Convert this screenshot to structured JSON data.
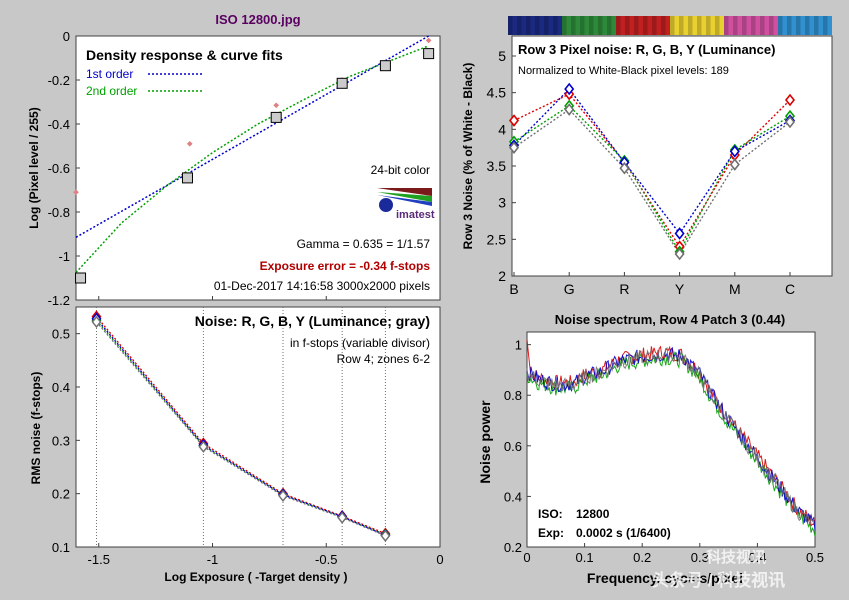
{
  "window": {
    "title": "ISO 12800.jpg"
  },
  "colors": {
    "background": "#c8c8c8",
    "plot_bg": "#ffffff",
    "red": "#dd0000",
    "green": "#00a000",
    "blue": "#0000cc",
    "gray": "#707070",
    "title_purple": "#5a0060",
    "exposure_error": "#b00000"
  },
  "color_strip": [
    "#1a2a80",
    "#2e8a3a",
    "#c02020",
    "#e8d030",
    "#d050a0",
    "#3090d0"
  ],
  "chart_data": [
    {
      "type": "scatter",
      "title": "Density response & curve fits",
      "xlabel": "Log Exposure ( -Target density )",
      "ylabel": "Log (Pixel level / 255)",
      "xlim": [
        -1.6,
        0
      ],
      "ylim": [
        -1.2,
        0
      ],
      "x_ticks": [
        "-1.5",
        "-1",
        "-0.5",
        "0"
      ],
      "y_ticks": [
        "0",
        "-0.2",
        "-0.4",
        "-0.6",
        "-0.8",
        "-1",
        "-1.2"
      ],
      "legend": [
        "1st order",
        "2nd order"
      ],
      "points": [
        {
          "x": -1.58,
          "y": -1.1
        },
        {
          "x": -1.11,
          "y": -0.645
        },
        {
          "x": -0.72,
          "y": -0.37
        },
        {
          "x": -0.43,
          "y": -0.215
        },
        {
          "x": -0.24,
          "y": -0.135
        },
        {
          "x": -0.05,
          "y": -0.08
        }
      ],
      "pink_points": [
        {
          "x": -1.6,
          "y": -0.71
        },
        {
          "x": -1.1,
          "y": -0.49
        },
        {
          "x": -0.72,
          "y": -0.315
        },
        {
          "x": -0.43,
          "y": -0.2
        },
        {
          "x": -0.24,
          "y": -0.12
        },
        {
          "x": -0.05,
          "y": -0.02
        }
      ],
      "fit_1st": {
        "x": [
          -1.6,
          -0.05
        ],
        "y": [
          -0.915,
          0.0
        ]
      },
      "fit_2nd": [
        [
          -1.6,
          -1.075
        ],
        [
          -1.4,
          -0.85
        ],
        [
          -1.2,
          -0.68
        ],
        [
          -1.0,
          -0.53
        ],
        [
          -0.8,
          -0.4
        ],
        [
          -0.6,
          -0.29
        ],
        [
          -0.4,
          -0.185
        ],
        [
          -0.2,
          -0.105
        ],
        [
          -0.05,
          -0.045
        ]
      ],
      "info": {
        "color_depth": "24-bit color",
        "logo": "imatest",
        "gamma": "Gamma = 0.635 = 1/1.57",
        "exposure_error": "Exposure error = -0.34 f-stops",
        "footer": "01-Dec-2017 14:16:58   3000x2000 pixels"
      }
    },
    {
      "type": "line",
      "title": "Row 3 Pixel noise: R, G, B, Y (Luminance)",
      "subtitle": "Normalized to White-Black pixel levels: 189",
      "ylabel": "Row 3 Noise (% of White - Black)",
      "categories": [
        "B",
        "G",
        "R",
        "Y",
        "M",
        "C"
      ],
      "ylim": [
        2,
        5
      ],
      "y_ticks": [
        "5",
        "4.5",
        "4",
        "3.5",
        "3",
        "2.5",
        "2"
      ],
      "series": [
        {
          "name": "R",
          "values": [
            4.12,
            4.48,
            3.55,
            2.4,
            3.65,
            4.4
          ]
        },
        {
          "name": "G",
          "values": [
            3.83,
            4.32,
            3.57,
            2.33,
            3.72,
            4.18
          ]
        },
        {
          "name": "B",
          "values": [
            3.78,
            4.55,
            3.55,
            2.58,
            3.7,
            4.12
          ]
        },
        {
          "name": "Y",
          "values": [
            3.75,
            4.27,
            3.47,
            2.3,
            3.52,
            4.1
          ]
        }
      ]
    },
    {
      "type": "line",
      "title": "Noise: R, G, B, Y (Luminance; gray)",
      "subtitle1": "in f-stops (variable divisor)",
      "subtitle2": "Row 4; zones 6-2",
      "xlabel": "Log Exposure ( -Target density )",
      "ylabel": "RMS noise (f-stops)",
      "xlim": [
        -1.6,
        0
      ],
      "ylim": [
        0.1,
        0.55
      ],
      "x_ticks": [
        "-1.5",
        "-1",
        "-0.5",
        "0"
      ],
      "y_ticks": [
        "0.5",
        "0.4",
        "0.3",
        "0.2",
        "0.1"
      ],
      "x": [
        -1.51,
        -1.04,
        -0.69,
        -0.43,
        -0.24
      ],
      "series": [
        {
          "name": "R",
          "values": [
            0.532,
            0.294,
            0.2,
            0.158,
            0.125
          ]
        },
        {
          "name": "G",
          "values": [
            0.525,
            0.29,
            0.198,
            0.156,
            0.123
          ]
        },
        {
          "name": "B",
          "values": [
            0.528,
            0.291,
            0.198,
            0.157,
            0.122
          ]
        },
        {
          "name": "Y",
          "values": [
            0.522,
            0.288,
            0.196,
            0.155,
            0.121
          ]
        }
      ],
      "vlines": [
        -1.51,
        -1.04,
        -0.69,
        -0.43,
        -0.24
      ]
    },
    {
      "type": "line",
      "title": "Noise spectrum, Row 4 Patch 3 (0.44)",
      "xlabel": "Frequency, cycles/pixel",
      "ylabel": "Noise power",
      "xlim": [
        0,
        0.5
      ],
      "ylim": [
        0.2,
        1.05
      ],
      "x_ticks": [
        "0",
        "0.1",
        "0.2",
        "0.3",
        "0.4",
        "0.5"
      ],
      "y_ticks": [
        "1",
        "0.8",
        "0.6",
        "0.4",
        "0.2"
      ],
      "envelope": [
        [
          0,
          0.89
        ],
        [
          0.02,
          0.86
        ],
        [
          0.05,
          0.84
        ],
        [
          0.08,
          0.84
        ],
        [
          0.1,
          0.87
        ],
        [
          0.13,
          0.89
        ],
        [
          0.16,
          0.93
        ],
        [
          0.2,
          0.95
        ],
        [
          0.24,
          0.96
        ],
        [
          0.27,
          0.95
        ],
        [
          0.3,
          0.88
        ],
        [
          0.32,
          0.8
        ],
        [
          0.35,
          0.7
        ],
        [
          0.38,
          0.61
        ],
        [
          0.41,
          0.52
        ],
        [
          0.44,
          0.43
        ],
        [
          0.47,
          0.34
        ],
        [
          0.5,
          0.28
        ]
      ],
      "info": {
        "iso_label": "ISO:",
        "iso_value": "12800",
        "exp_label": "Exp:",
        "exp_value": "0.0002 s   (1/6400)"
      }
    }
  ],
  "watermark": {
    "line1": "科技视讯",
    "line2": "头条号 / 科技视讯"
  }
}
